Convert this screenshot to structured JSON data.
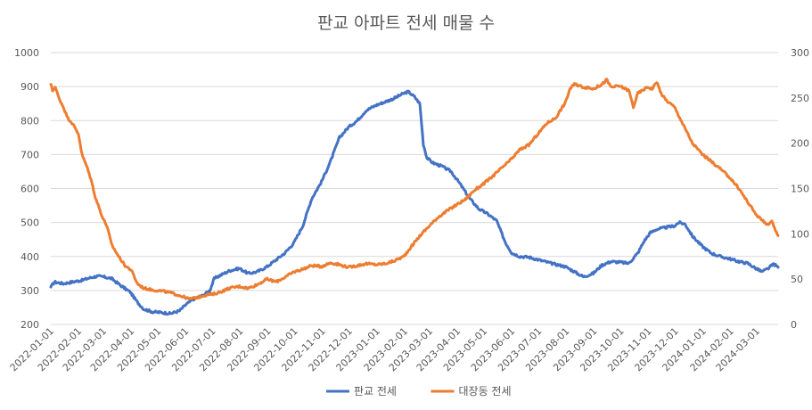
{
  "chart_data": {
    "type": "line",
    "title": "판교 아파트 전세 매물 수",
    "xlabel": "",
    "ylabel": "",
    "y_left": {
      "min": 200,
      "max": 1000,
      "ticks": [
        "200",
        "300",
        "400",
        "500",
        "600",
        "700",
        "800",
        "900",
        "1000"
      ]
    },
    "y_right": {
      "min": 0,
      "max": 300,
      "ticks": [
        "0",
        "50",
        "100",
        "150",
        "200",
        "250",
        "300"
      ]
    },
    "x_range": [
      "2022-01-01",
      "2024-03-25"
    ],
    "x_ticks": [
      "2022-01-01",
      "2022-02-01",
      "2022-03-01",
      "2022-04-01",
      "2022-05-01",
      "2022-06-01",
      "2022-07-01",
      "2022-08-01",
      "2022-09-01",
      "2022-10-01",
      "2022-11-01",
      "2022-12-01",
      "2023-01-01",
      "2023-02-01",
      "2023-03-01",
      "2023-04-01",
      "2023-05-01",
      "2023-06-01",
      "2023-07-01",
      "2023-08-01",
      "2023-09-01",
      "2023-10-01",
      "2023-11-01",
      "2023-12-01",
      "2024-01-01",
      "2024-02-01",
      "2024-03-01"
    ],
    "grid": "horizontal",
    "legend_position": "bottom",
    "series": [
      {
        "name": "판교 전세",
        "axis": "left",
        "color": "#4472C4",
        "points": [
          [
            "2022-01-01",
            310
          ],
          [
            "2022-01-05",
            325
          ],
          [
            "2022-01-15",
            320
          ],
          [
            "2022-01-25",
            325
          ],
          [
            "2022-02-05",
            330
          ],
          [
            "2022-02-15",
            338
          ],
          [
            "2022-02-22",
            342
          ],
          [
            "2022-03-01",
            340
          ],
          [
            "2022-03-10",
            335
          ],
          [
            "2022-03-20",
            315
          ],
          [
            "2022-03-31",
            295
          ],
          [
            "2022-04-08",
            265
          ],
          [
            "2022-04-15",
            245
          ],
          [
            "2022-04-25",
            237
          ],
          [
            "2022-05-05",
            235
          ],
          [
            "2022-05-15",
            232
          ],
          [
            "2022-05-25",
            240
          ],
          [
            "2022-06-01",
            258
          ],
          [
            "2022-06-10",
            275
          ],
          [
            "2022-06-20",
            285
          ],
          [
            "2022-06-28",
            300
          ],
          [
            "2022-07-03",
            335
          ],
          [
            "2022-07-10",
            345
          ],
          [
            "2022-07-20",
            358
          ],
          [
            "2022-07-31",
            365
          ],
          [
            "2022-08-10",
            350
          ],
          [
            "2022-08-20",
            355
          ],
          [
            "2022-08-31",
            370
          ],
          [
            "2022-09-10",
            390
          ],
          [
            "2022-09-20",
            410
          ],
          [
            "2022-09-30",
            440
          ],
          [
            "2022-10-10",
            490
          ],
          [
            "2022-10-20",
            570
          ],
          [
            "2022-10-31",
            620
          ],
          [
            "2022-11-10",
            680
          ],
          [
            "2022-11-20",
            750
          ],
          [
            "2022-11-30",
            780
          ],
          [
            "2022-12-10",
            800
          ],
          [
            "2022-12-20",
            830
          ],
          [
            "2022-12-31",
            845
          ],
          [
            "2023-01-10",
            855
          ],
          [
            "2023-01-20",
            865
          ],
          [
            "2023-01-31",
            880
          ],
          [
            "2023-02-05",
            885
          ],
          [
            "2023-02-12",
            870
          ],
          [
            "2023-02-18",
            850
          ],
          [
            "2023-02-22",
            730
          ],
          [
            "2023-02-26",
            690
          ],
          [
            "2023-03-05",
            675
          ],
          [
            "2023-03-15",
            665
          ],
          [
            "2023-03-25",
            650
          ],
          [
            "2023-04-05",
            610
          ],
          [
            "2023-04-15",
            570
          ],
          [
            "2023-04-25",
            540
          ],
          [
            "2023-05-05",
            525
          ],
          [
            "2023-05-15",
            505
          ],
          [
            "2023-05-25",
            440
          ],
          [
            "2023-06-01",
            410
          ],
          [
            "2023-06-10",
            400
          ],
          [
            "2023-06-20",
            398
          ],
          [
            "2023-07-01",
            390
          ],
          [
            "2023-07-15",
            380
          ],
          [
            "2023-07-31",
            370
          ],
          [
            "2023-08-10",
            355
          ],
          [
            "2023-08-20",
            340
          ],
          [
            "2023-08-31",
            350
          ],
          [
            "2023-09-10",
            375
          ],
          [
            "2023-09-20",
            385
          ],
          [
            "2023-09-30",
            383
          ],
          [
            "2023-10-10",
            380
          ],
          [
            "2023-10-20",
            410
          ],
          [
            "2023-10-27",
            445
          ],
          [
            "2023-11-03",
            470
          ],
          [
            "2023-11-10",
            480
          ],
          [
            "2023-11-20",
            485
          ],
          [
            "2023-11-30",
            490
          ],
          [
            "2023-12-05",
            500
          ],
          [
            "2023-12-12",
            495
          ],
          [
            "2023-12-20",
            460
          ],
          [
            "2023-12-31",
            430
          ],
          [
            "2024-01-10",
            410
          ],
          [
            "2024-01-20",
            400
          ],
          [
            "2024-01-31",
            393
          ],
          [
            "2024-02-10",
            385
          ],
          [
            "2024-02-20",
            380
          ],
          [
            "2024-02-29",
            365
          ],
          [
            "2024-03-07",
            355
          ],
          [
            "2024-03-14",
            365
          ],
          [
            "2024-03-20",
            378
          ],
          [
            "2024-03-25",
            368
          ]
        ]
      },
      {
        "name": "대장동 전세",
        "axis": "right",
        "color": "#ED7D31",
        "points": [
          [
            "2022-01-01",
            265
          ],
          [
            "2022-01-03",
            258
          ],
          [
            "2022-01-06",
            262
          ],
          [
            "2022-01-10",
            250
          ],
          [
            "2022-01-15",
            240
          ],
          [
            "2022-01-20",
            228
          ],
          [
            "2022-01-25",
            222
          ],
          [
            "2022-02-01",
            210
          ],
          [
            "2022-02-05",
            187
          ],
          [
            "2022-02-10",
            175
          ],
          [
            "2022-02-15",
            160
          ],
          [
            "2022-02-20",
            140
          ],
          [
            "2022-02-28",
            118
          ],
          [
            "2022-03-05",
            108
          ],
          [
            "2022-03-10",
            88
          ],
          [
            "2022-03-18",
            75
          ],
          [
            "2022-03-25",
            65
          ],
          [
            "2022-04-01",
            60
          ],
          [
            "2022-04-08",
            45
          ],
          [
            "2022-04-15",
            40
          ],
          [
            "2022-04-25",
            38
          ],
          [
            "2022-05-05",
            37
          ],
          [
            "2022-05-15",
            35
          ],
          [
            "2022-05-25",
            32
          ],
          [
            "2022-06-05",
            28
          ],
          [
            "2022-06-15",
            30
          ],
          [
            "2022-06-25",
            33
          ],
          [
            "2022-07-01",
            33
          ],
          [
            "2022-07-10",
            36
          ],
          [
            "2022-07-20",
            40
          ],
          [
            "2022-07-31",
            42
          ],
          [
            "2022-08-10",
            40
          ],
          [
            "2022-08-20",
            44
          ],
          [
            "2022-08-31",
            50
          ],
          [
            "2022-09-10",
            47
          ],
          [
            "2022-09-20",
            52
          ],
          [
            "2022-09-30",
            58
          ],
          [
            "2022-10-10",
            61
          ],
          [
            "2022-10-20",
            65
          ],
          [
            "2022-10-31",
            64
          ],
          [
            "2022-11-10",
            68
          ],
          [
            "2022-11-20",
            66
          ],
          [
            "2022-11-30",
            63
          ],
          [
            "2022-12-10",
            65
          ],
          [
            "2022-12-20",
            67
          ],
          [
            "2022-12-31",
            66
          ],
          [
            "2023-01-10",
            67
          ],
          [
            "2023-01-20",
            70
          ],
          [
            "2023-01-31",
            75
          ],
          [
            "2023-02-10",
            88
          ],
          [
            "2023-02-20",
            100
          ],
          [
            "2023-02-28",
            108
          ],
          [
            "2023-03-10",
            118
          ],
          [
            "2023-03-20",
            125
          ],
          [
            "2023-03-31",
            132
          ],
          [
            "2023-04-10",
            138
          ],
          [
            "2023-04-20",
            148
          ],
          [
            "2023-04-30",
            155
          ],
          [
            "2023-05-10",
            163
          ],
          [
            "2023-05-20",
            172
          ],
          [
            "2023-05-31",
            182
          ],
          [
            "2023-06-10",
            193
          ],
          [
            "2023-06-20",
            198
          ],
          [
            "2023-06-30",
            210
          ],
          [
            "2023-07-10",
            222
          ],
          [
            "2023-07-20",
            228
          ],
          [
            "2023-07-31",
            245
          ],
          [
            "2023-08-05",
            260
          ],
          [
            "2023-08-10",
            265
          ],
          [
            "2023-08-20",
            262
          ],
          [
            "2023-08-31",
            260
          ],
          [
            "2023-09-10",
            265
          ],
          [
            "2023-09-15",
            270
          ],
          [
            "2023-09-20",
            262
          ],
          [
            "2023-09-30",
            263
          ],
          [
            "2023-10-10",
            258
          ],
          [
            "2023-10-15",
            240
          ],
          [
            "2023-10-20",
            255
          ],
          [
            "2023-10-31",
            262
          ],
          [
            "2023-11-05",
            260
          ],
          [
            "2023-11-10",
            268
          ],
          [
            "2023-11-15",
            255
          ],
          [
            "2023-11-20",
            248
          ],
          [
            "2023-11-30",
            240
          ],
          [
            "2023-12-10",
            220
          ],
          [
            "2023-12-20",
            200
          ],
          [
            "2023-12-31",
            188
          ],
          [
            "2024-01-10",
            180
          ],
          [
            "2024-01-20",
            172
          ],
          [
            "2024-01-31",
            162
          ],
          [
            "2024-02-10",
            150
          ],
          [
            "2024-02-20",
            135
          ],
          [
            "2024-02-29",
            122
          ],
          [
            "2024-03-07",
            115
          ],
          [
            "2024-03-14",
            110
          ],
          [
            "2024-03-18",
            113
          ],
          [
            "2024-03-22",
            104
          ],
          [
            "2024-03-25",
            98
          ]
        ]
      }
    ]
  }
}
